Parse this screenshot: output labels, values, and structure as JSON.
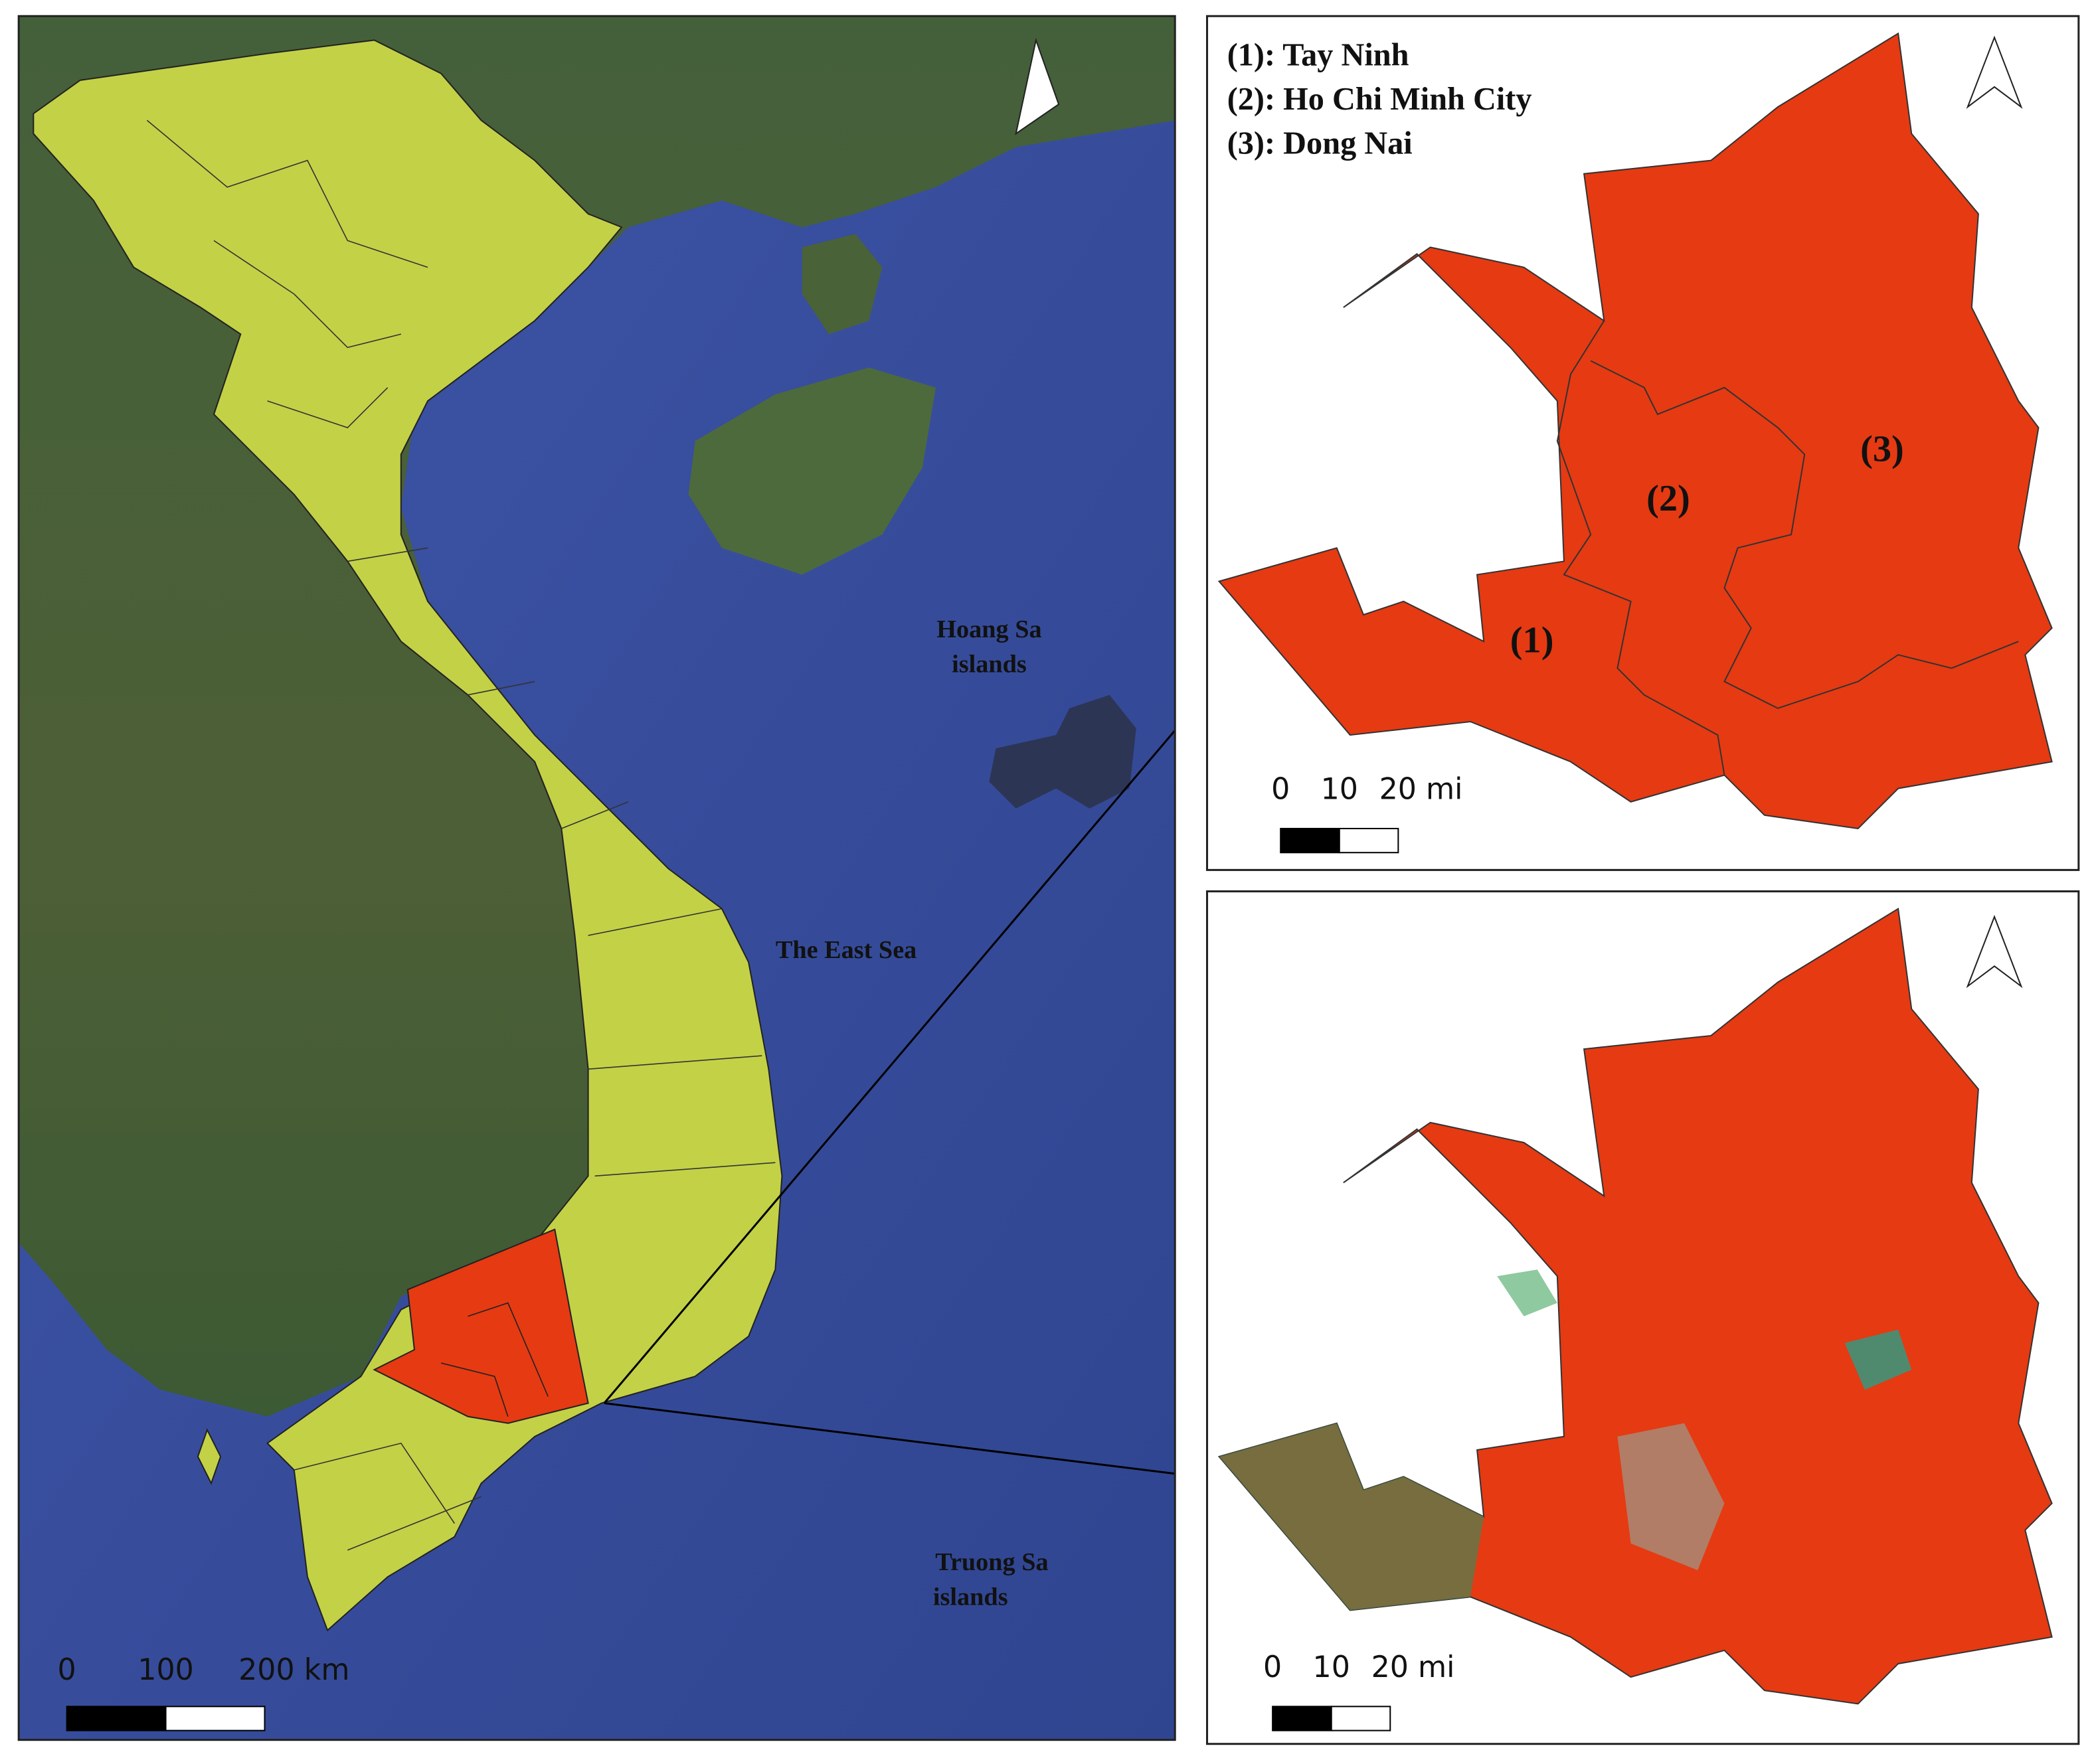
{
  "main_map": {
    "sea_label": "The East Sea",
    "hoang_sa_label": [
      "Hoang Sa",
      "islands"
    ],
    "truong_sa_label": [
      "Truong Sa",
      "islands"
    ],
    "scale_bar": {
      "labels": [
        "0",
        "100",
        "200 km"
      ]
    }
  },
  "admin_inset": {
    "legend": [
      "(1): Tay Ninh",
      "(2): Ho Chi Minh City",
      "(3): Dong Nai"
    ],
    "region_labels": [
      "(1)",
      "(2)",
      "(3)"
    ],
    "scale_bar": {
      "labels": [
        "0",
        "10",
        "20 mi"
      ]
    }
  },
  "satellite_inset": {
    "scale_bar": {
      "labels": [
        "0",
        "10",
        "20 mi"
      ]
    }
  }
}
